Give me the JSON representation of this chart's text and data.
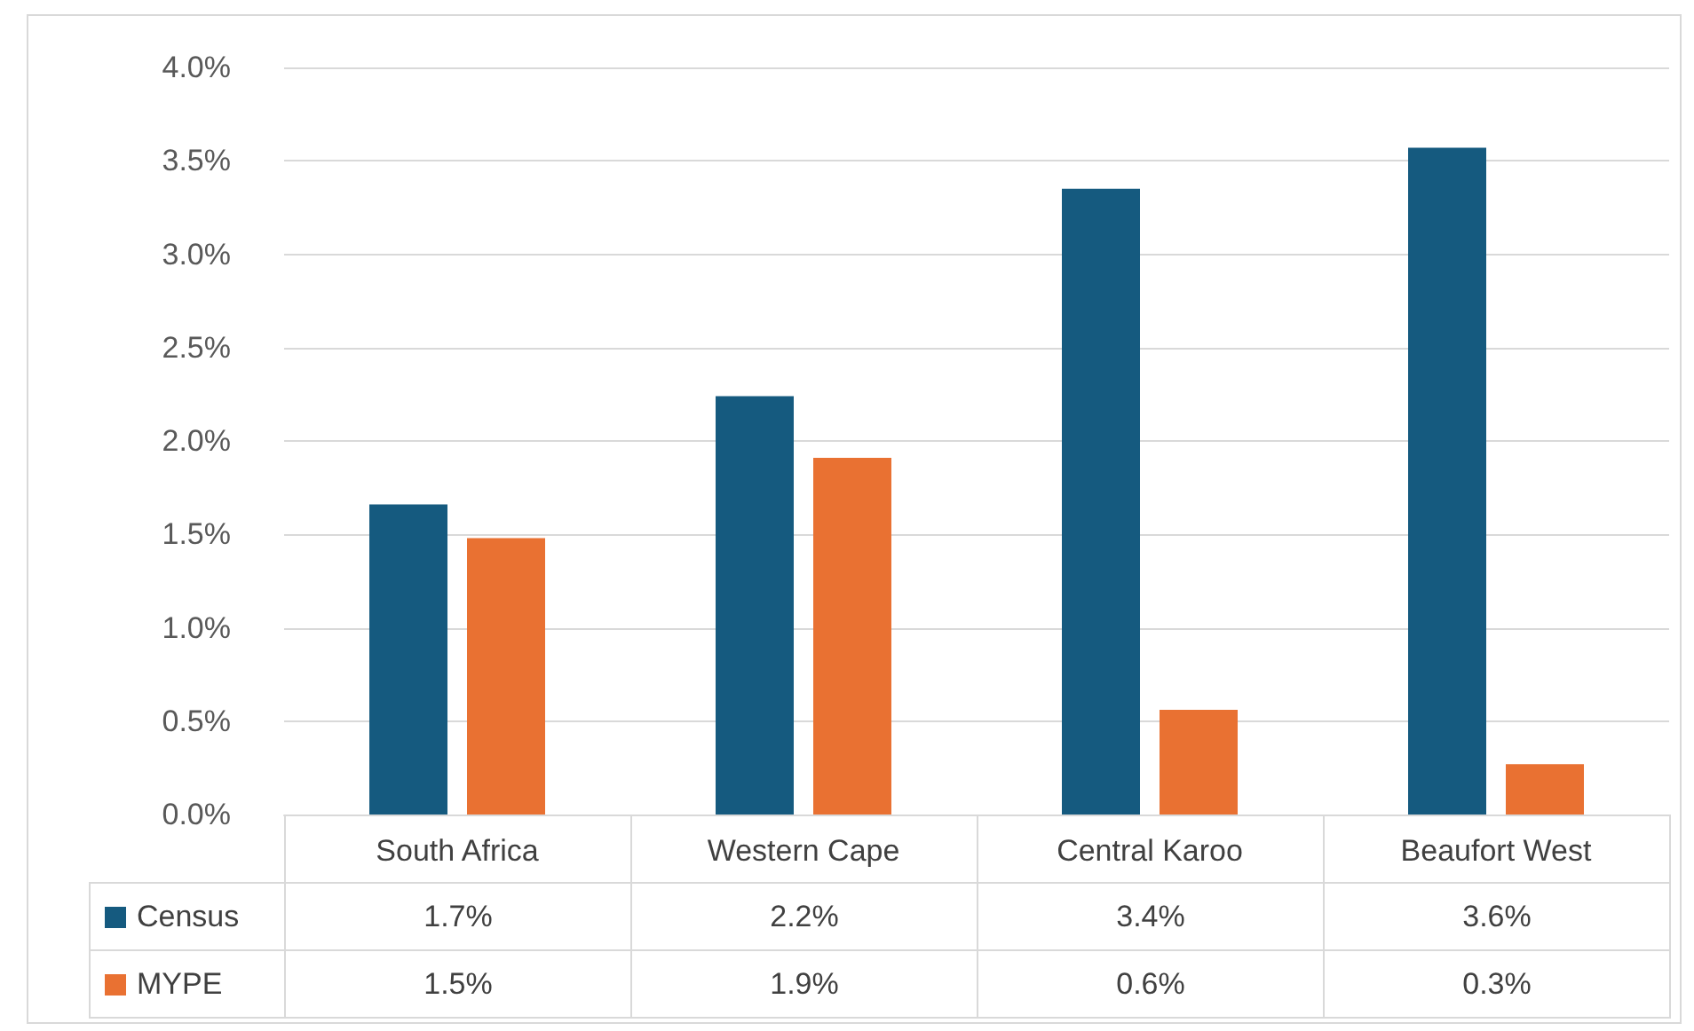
{
  "chart_data": {
    "type": "bar",
    "categories": [
      "South Africa",
      "Western Cape",
      "Central Karoo",
      "Beaufort West"
    ],
    "series": [
      {
        "name": "Census",
        "color": "#155a7f",
        "values": [
          1.66,
          2.24,
          3.35,
          3.57
        ],
        "value_labels": [
          "1.7%",
          "2.2%",
          "3.4%",
          "3.6%"
        ]
      },
      {
        "name": "MYPE",
        "color": "#e97132",
        "values": [
          1.48,
          1.91,
          0.56,
          0.27
        ],
        "value_labels": [
          "1.5%",
          "1.9%",
          "0.6%",
          "0.3%"
        ]
      }
    ],
    "ylim": [
      0,
      4
    ],
    "yticks": [
      {
        "value": 0,
        "label": "0.0%"
      },
      {
        "value": 0.5,
        "label": "0.5%"
      },
      {
        "value": 1,
        "label": "1.0%"
      },
      {
        "value": 1.5,
        "label": "1.5%"
      },
      {
        "value": 2,
        "label": "2.0%"
      },
      {
        "value": 2.5,
        "label": "2.5%"
      },
      {
        "value": 3,
        "label": "3.0%"
      },
      {
        "value": 3.5,
        "label": "3.5%"
      },
      {
        "value": 4,
        "label": "4.0%"
      }
    ],
    "grid": "y",
    "legend": "bottom"
  }
}
